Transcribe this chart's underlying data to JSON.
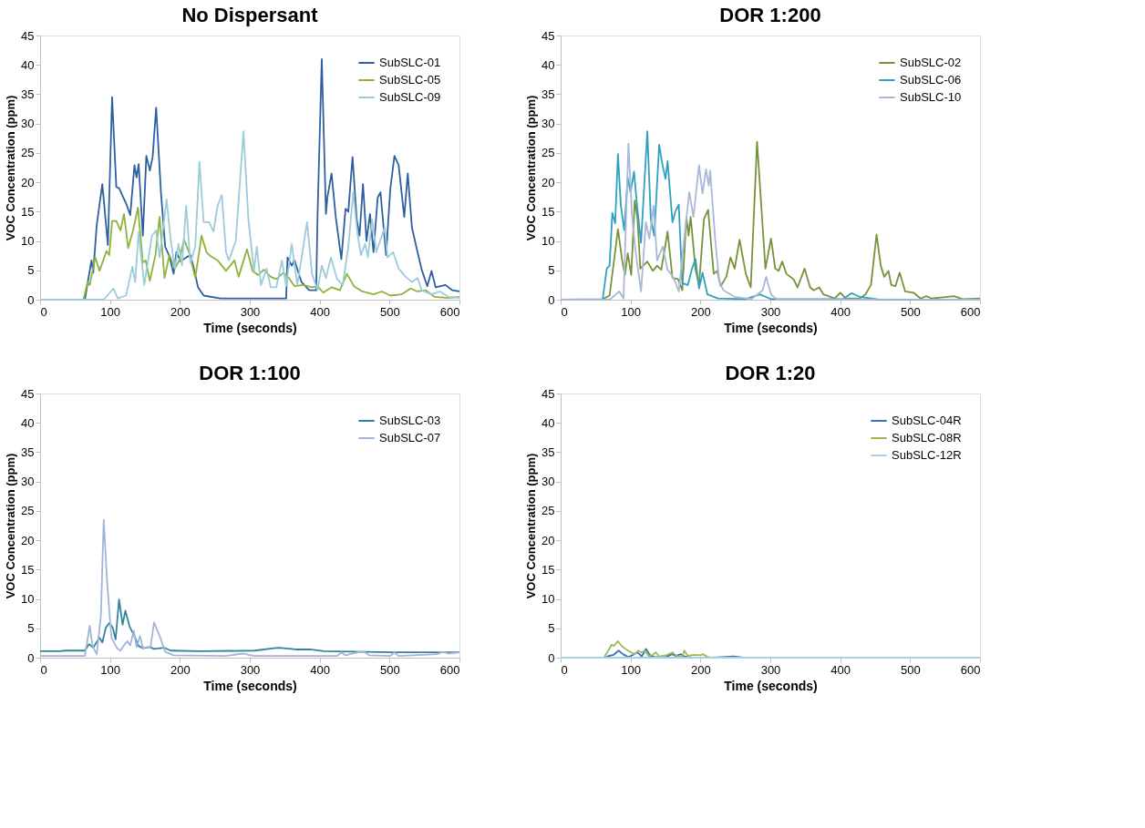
{
  "chart_data": [
    {
      "type": "line",
      "title": "No Dispersant",
      "xlabel": "Time (seconds)",
      "ylabel": "VOC Concentration (ppm)",
      "xlim": [
        0,
        600
      ],
      "xticks": [
        0,
        100,
        200,
        300,
        400,
        500,
        600
      ],
      "ylim": [
        0,
        45
      ],
      "yticks": [
        0,
        5,
        10,
        15,
        20,
        25,
        30,
        35,
        40,
        45
      ],
      "grid": false,
      "legend": "top right",
      "marker": "none",
      "line_style": "solid",
      "series": [
        {
          "name": "SubSLC-01",
          "color": "#2e5fa0",
          "x": [
            0,
            64,
            73.5,
            76,
            81,
            89,
            97,
            103,
            109,
            113,
            123,
            129,
            135,
            138,
            141,
            147,
            152,
            157,
            161,
            166,
            173,
            179,
            185,
            191,
            195,
            201,
            209,
            215,
            220,
            226,
            234,
            258,
            346,
            352,
            354,
            360,
            364,
            374,
            385,
            395,
            397,
            403,
            409,
            411,
            417,
            423,
            431,
            437,
            441,
            447,
            453,
            457,
            462,
            467,
            472,
            477,
            483,
            487,
            495,
            501,
            507,
            513,
            521,
            526,
            532,
            540,
            546,
            554,
            560,
            566,
            580,
            590,
            600
          ],
          "values": [
            0,
            0,
            6.7,
            4.6,
            12.7,
            19.7,
            9.3,
            34.5,
            19.2,
            19,
            16.4,
            14.4,
            22.9,
            20.8,
            23.1,
            10.9,
            24.5,
            22,
            24.3,
            32.7,
            18.1,
            9,
            7.4,
            4.4,
            8.1,
            6.5,
            7.2,
            7.6,
            5.3,
            2.1,
            0.7,
            0.2,
            0.2,
            0.2,
            7.2,
            5.8,
            6.7,
            3,
            1.6,
            1.6,
            14.6,
            41,
            14.6,
            17.4,
            21.5,
            14.1,
            6.9,
            15.5,
            15,
            24.3,
            13.7,
            10.9,
            19.7,
            10,
            14.6,
            8.1,
            17.4,
            18.3,
            7.6,
            18.8,
            24.5,
            22.9,
            14.1,
            21.5,
            12.3,
            8.1,
            5.1,
            2.3,
            4.9,
            2.1,
            2.5,
            1.6,
            1.4
          ]
        },
        {
          "name": "SubSLC-05",
          "color": "#8db33a",
          "x": [
            0,
            62,
            68,
            71,
            79,
            85,
            95,
            99,
            103,
            109,
            115,
            120,
            126,
            133,
            140,
            147,
            151,
            157,
            165,
            171,
            178,
            185,
            193,
            199,
            206,
            213,
            222,
            231,
            238,
            244,
            254,
            266,
            278,
            284,
            296,
            304,
            312,
            320,
            330,
            338,
            348,
            356,
            364,
            376,
            389,
            397,
            405,
            417,
            429,
            439,
            449,
            461,
            477,
            489,
            501,
            517,
            530,
            540,
            552,
            564,
            584,
            600
          ],
          "values": [
            0,
            0,
            3,
            2.5,
            7.2,
            4.9,
            8.3,
            7.6,
            13.4,
            13.4,
            11.8,
            14.6,
            8.8,
            11.8,
            15.7,
            6.3,
            6.7,
            3.2,
            7.6,
            14.1,
            3.7,
            7.6,
            5.3,
            6.7,
            10.2,
            8.1,
            3.7,
            10.9,
            8.1,
            7.4,
            6.7,
            4.9,
            6.7,
            3.9,
            8.6,
            4.9,
            4.2,
            5.1,
            3.9,
            3.5,
            4.6,
            3.7,
            2.3,
            2.5,
            2.1,
            2.3,
            1.2,
            2.1,
            1.6,
            4.4,
            2.3,
            1.4,
            0.9,
            1.4,
            0.7,
            0.9,
            1.9,
            1.4,
            1.6,
            0.5,
            0.3,
            0.5
          ]
        },
        {
          "name": "SubSLC-09",
          "color": "#9ccbdc",
          "x": [
            0,
            91,
            105,
            111,
            123,
            132,
            136,
            141,
            149,
            160,
            166,
            171,
            181,
            187,
            193,
            198,
            203,
            209,
            215,
            222,
            228,
            234,
            242,
            248,
            254,
            260,
            266,
            270,
            280,
            291,
            298,
            306,
            310,
            316,
            324,
            330,
            338,
            346,
            352,
            360,
            368,
            382,
            389,
            397,
            403,
            409,
            416,
            425,
            433,
            441,
            448,
            454,
            459,
            465,
            469,
            475,
            481,
            493,
            497,
            505,
            513,
            523,
            532,
            540,
            546,
            560,
            572,
            584,
            600
          ],
          "values": [
            0,
            0,
            1.9,
            0.2,
            0.7,
            5.6,
            3,
            11.6,
            2.5,
            10.9,
            11.8,
            7.2,
            17.1,
            10,
            5.3,
            9.5,
            5.8,
            16,
            6.3,
            9,
            23.5,
            13.2,
            13.2,
            11.6,
            16,
            17.8,
            8.1,
            6.7,
            10,
            28.7,
            13.7,
            4.9,
            9,
            2.5,
            5.3,
            2.1,
            2.1,
            6.7,
            2.3,
            9.5,
            2.5,
            13.2,
            4.4,
            1.6,
            5.8,
            3.7,
            7.2,
            3.5,
            2.5,
            9,
            18.3,
            11.3,
            7.6,
            9.5,
            7.2,
            13.7,
            8.1,
            12.3,
            7.2,
            8.1,
            5.3,
            3.9,
            3,
            3.7,
            1.6,
            0.9,
            1.4,
            0.5,
            0.3
          ]
        }
      ]
    },
    {
      "type": "line",
      "title": "DOR 1:200",
      "xlabel": "Time (seconds)",
      "ylabel": "VOC Concentration (ppm)",
      "xlim": [
        0,
        600
      ],
      "xticks": [
        0,
        100,
        200,
        300,
        400,
        500,
        600
      ],
      "ylim": [
        0,
        45
      ],
      "yticks": [
        0,
        5,
        10,
        15,
        20,
        25,
        30,
        35,
        40,
        45
      ],
      "grid": false,
      "legend": "top right",
      "marker": "none",
      "line_style": "solid",
      "series": [
        {
          "name": "SubSLC-02",
          "color": "#76933c",
          "x": [
            0,
            60,
            70,
            76,
            82,
            88,
            92,
            96,
            101,
            106,
            110,
            114,
            124,
            132,
            138,
            144,
            153,
            160,
            168,
            174,
            180,
            183,
            186,
            193,
            198,
            205,
            211,
            219,
            224,
            229,
            237,
            243,
            249,
            256,
            265,
            272,
            281,
            293,
            301,
            307,
            312,
            317,
            323,
            333,
            339,
            349,
            357,
            362,
            370,
            376,
            392,
            400,
            408,
            428,
            436,
            444,
            452,
            458,
            463,
            469,
            473,
            479,
            485,
            493,
            505,
            515,
            523,
            531,
            563,
            575,
            600
          ],
          "values": [
            0,
            0.1,
            0.7,
            6.3,
            12,
            6.7,
            4.2,
            7.9,
            4.2,
            16.9,
            13.7,
            5.3,
            6.5,
            4.9,
            5.8,
            5.1,
            11.6,
            3.7,
            3.5,
            1.6,
            14.1,
            10.9,
            14.1,
            5.1,
            2.5,
            13.7,
            15.3,
            4.4,
            4.9,
            2.3,
            3.9,
            7.2,
            5.3,
            10.2,
            4.4,
            2.1,
            26.9,
            5.3,
            10.4,
            5.3,
            4.9,
            6.5,
            4.4,
            3.5,
            2.1,
            5.3,
            2.1,
            1.6,
            2.1,
            0.9,
            0.2,
            1.2,
            0.2,
            0.2,
            0.9,
            2.5,
            11.1,
            5.8,
            3.9,
            4.9,
            2.5,
            2.3,
            4.6,
            1.4,
            1.2,
            0.2,
            0.6,
            0.2,
            0.6,
            0.1,
            0.2
          ]
        },
        {
          "name": "SubSLC-06",
          "color": "#31a0c0",
          "x": [
            0,
            60,
            66,
            70,
            74,
            78,
            82,
            86,
            91,
            96,
            100,
            105,
            109,
            115,
            124,
            129,
            134,
            141,
            145,
            150,
            153,
            160,
            164,
            169,
            174,
            182,
            188,
            193,
            198,
            203,
            210,
            225,
            265,
            285,
            293,
            301,
            404,
            416,
            428,
            456,
            600
          ],
          "values": [
            0,
            0,
            5.3,
            5.8,
            14.8,
            13,
            24.8,
            16.2,
            11.8,
            20.8,
            18.3,
            21.8,
            16.4,
            9.7,
            28.7,
            13.7,
            10.9,
            26.4,
            23.4,
            20.6,
            23.6,
            13.2,
            15,
            16.2,
            2.8,
            2.5,
            5.3,
            6.9,
            1.9,
            4.6,
            0.9,
            0.2,
            0.1,
            0.9,
            0.5,
            0.1,
            0.1,
            1.1,
            0.5,
            0,
            0
          ]
        },
        {
          "name": "SubSLC-10",
          "color": "#a9b8d9",
          "x": [
            0,
            70,
            84,
            90,
            97,
            102,
            106,
            110,
            115,
            122,
            127,
            133,
            138,
            146,
            153,
            159,
            164,
            169,
            176,
            184,
            190,
            198,
            203,
            208,
            212,
            214,
            221,
            227,
            233,
            249,
            273,
            289,
            294,
            301,
            309,
            600
          ],
          "values": [
            0,
            0,
            1.4,
            0.2,
            26.6,
            14.6,
            9.5,
            5.8,
            1.4,
            13.2,
            10.4,
            16,
            6.7,
            9,
            5.1,
            4.2,
            3,
            1.4,
            9.5,
            18.3,
            14.1,
            22.9,
            18.1,
            22.2,
            19.4,
            22,
            10.4,
            3,
            1.6,
            0.5,
            0.1,
            1.6,
            3.9,
            0.9,
            0.1,
            0
          ]
        }
      ]
    },
    {
      "type": "line",
      "title": "DOR 1:100",
      "xlabel": "Time (seconds)",
      "ylabel": "VOC Concentration (ppm)",
      "xlim": [
        0,
        600
      ],
      "xticks": [
        0,
        100,
        200,
        300,
        400,
        500,
        600
      ],
      "ylim": [
        0,
        45
      ],
      "yticks": [
        0,
        5,
        10,
        15,
        20,
        25,
        30,
        35,
        40,
        45
      ],
      "grid": false,
      "legend": "top right",
      "marker": "none",
      "line_style": "solid",
      "series": [
        {
          "name": "SubSLC-03",
          "color": "#31849b",
          "x": [
            0,
            28,
            36,
            64,
            70,
            76,
            85,
            89,
            94,
            99,
            104,
            108,
            113,
            118,
            122,
            128,
            134,
            141,
            147,
            157,
            163,
            177,
            187,
            227,
            307,
            334,
            342,
            366,
            386,
            406,
            505,
            600
          ],
          "values": [
            1.1,
            1.1,
            1.2,
            1.2,
            2.3,
            1.7,
            3.4,
            2.6,
            5.1,
            5.9,
            5.1,
            3.1,
            9.9,
            5.6,
            8,
            5.3,
            3.9,
            2,
            1.6,
            1.8,
            1.5,
            1.7,
            1.2,
            1.1,
            1.2,
            1.6,
            1.7,
            1.4,
            1.4,
            1.1,
            0.9,
            0.9
          ]
        },
        {
          "name": "SubSLC-07",
          "color": "#a3b4d9",
          "x": [
            0,
            64,
            68,
            71,
            75,
            81,
            87,
            91,
            96,
            102,
            110,
            115,
            121,
            125,
            129,
            134,
            138,
            143,
            147,
            153,
            158,
            163,
            171,
            179,
            191,
            266,
            290,
            306,
            425,
            431,
            437,
            457,
            465,
            471,
            501,
            507,
            513,
            568,
            576,
            584,
            600
          ],
          "values": [
            0.3,
            0.3,
            3.2,
            5.4,
            2,
            0.6,
            7.2,
            23.5,
            12.7,
            3.4,
            1.6,
            1.2,
            2.3,
            2.8,
            2.1,
            4.6,
            1.8,
            3.7,
            1.6,
            1.8,
            1.8,
            6,
            3.7,
            1,
            0.4,
            0.3,
            0.7,
            0.3,
            0.3,
            0.9,
            0.4,
            1,
            0.9,
            0.4,
            0.3,
            0.9,
            0.3,
            0.6,
            1,
            0.7,
            0.9
          ]
        }
      ]
    },
    {
      "type": "line",
      "title": "DOR 1:20",
      "xlabel": "Time (seconds)",
      "ylabel": "VOC Concentration (ppm)",
      "xlim": [
        0,
        600
      ],
      "xticks": [
        0,
        100,
        200,
        300,
        400,
        500,
        600
      ],
      "ylim": [
        0,
        45
      ],
      "yticks": [
        0,
        5,
        10,
        15,
        20,
        25,
        30,
        35,
        40,
        45
      ],
      "grid": false,
      "legend": "top right",
      "marker": "none",
      "line_style": "solid",
      "series": [
        {
          "name": "SubSLC-04R",
          "color": "#3a6fbf",
          "x": [
            63,
            69,
            76,
            83,
            89,
            97,
            104,
            110,
            116,
            122,
            129,
            136,
            151,
            159,
            165,
            172,
            177,
            188,
            218,
            248,
            261
          ],
          "values": [
            0,
            0.3,
            0.5,
            1.2,
            0.6,
            0.1,
            0.5,
            0.9,
            0.2,
            1.5,
            0.2,
            0.1,
            0.1,
            0.6,
            0.3,
            0.6,
            0.2,
            0,
            0,
            0.2,
            0
          ]
        },
        {
          "name": "SubSLC-08R",
          "color": "#9bbb59",
          "x": [
            62,
            69,
            73,
            76,
            82,
            88,
            95,
            101,
            106,
            111,
            116,
            120,
            126,
            132,
            136,
            141,
            151,
            160,
            166,
            174,
            177,
            182,
            190,
            200,
            203,
            211,
            222
          ],
          "values": [
            0,
            1.4,
            2.2,
            2,
            2.8,
            1.9,
            1.3,
            0.9,
            0.6,
            1.2,
            0.9,
            1.2,
            0.3,
            0.5,
            0.9,
            0.2,
            0.4,
            0.9,
            0.3,
            0.2,
            1.2,
            0.3,
            0.5,
            0.4,
            0.6,
            0.1,
            0
          ]
        },
        {
          "name": "SubSLC-12R",
          "color": "#a6d1e0",
          "x": [
            0,
            600
          ],
          "values": [
            0,
            0
          ]
        }
      ]
    }
  ]
}
